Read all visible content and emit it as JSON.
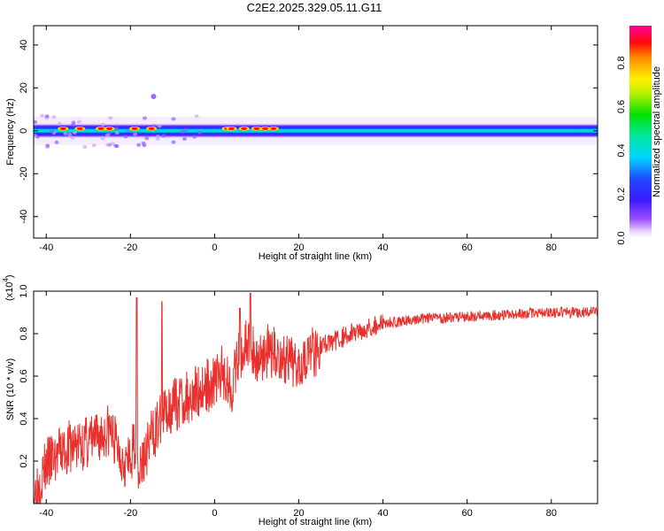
{
  "figure_title": "C2E2.2025.329.05.11.G11",
  "chart_data": [
    {
      "type": "heatmap",
      "title": "C2E2.2025.329.05.11.G11",
      "xlabel": "Height of straight line (km)",
      "ylabel": "Frequency (Hz)",
      "xlim": [
        -43,
        91
      ],
      "ylim": [
        -50,
        49
      ],
      "x_ticks": [
        -40,
        -20,
        0,
        20,
        40,
        60,
        80
      ],
      "y_ticks": [
        -40,
        -20,
        0,
        20,
        40
      ],
      "x_tick_labels": [
        "-40",
        "-20",
        "0",
        "20",
        "40",
        "60",
        "80"
      ],
      "y_tick_labels": [
        "-40",
        "-20",
        "0",
        "20",
        "40"
      ],
      "colorbar": {
        "label": "Normalized spectral amplitude",
        "range": [
          0,
          0.97
        ],
        "ticks": [
          0.0,
          0.2,
          0.4,
          0.6,
          0.8
        ],
        "tick_labels": [
          "0.0",
          "0.2",
          "0.4",
          "0.6",
          "0.8"
        ],
        "colormap": "rainbow (white-violet-blue-cyan-green-yellow-red-magenta)"
      },
      "band": {
        "center_frequency_hz": 0,
        "half_width_hz": 3,
        "peaks_at_height_km": [
          -36,
          -32,
          -27,
          -25,
          -19,
          -15,
          3,
          4,
          7,
          10,
          12,
          14
        ]
      },
      "isolated_blob": {
        "x": -14.5,
        "y": 16
      }
    },
    {
      "type": "line",
      "xlabel": "Height of straight line (km)",
      "ylabel": "SNR (10 * v/v)",
      "y_multiplier": "(x10",
      "y_multiplier_exp": "4",
      "y_multiplier_close": ")",
      "xlim": [
        -43,
        91
      ],
      "ylim": [
        0,
        1.0
      ],
      "x_ticks": [
        -40,
        -20,
        0,
        20,
        40,
        60,
        80
      ],
      "y_ticks": [
        0.2,
        0.4,
        0.6,
        0.8,
        1.0
      ],
      "x_tick_labels": [
        "-40",
        "-20",
        "0",
        "20",
        "40",
        "60",
        "80"
      ],
      "y_tick_labels": [
        "0.2",
        "0.4",
        "0.6",
        "0.8",
        "1.0"
      ],
      "line_color": "#e8302c",
      "series": [
        {
          "x": [
            -43,
            -40,
            -36,
            -32,
            -28,
            -25,
            -22,
            -20,
            -19,
            -18,
            -17,
            -15,
            -13,
            -11,
            -8,
            -5,
            -2,
            0,
            2,
            4,
            6,
            8,
            10,
            12,
            15,
            18,
            20,
            25,
            30,
            35,
            40,
            50,
            60,
            70,
            80,
            91
          ],
          "y": [
            0.05,
            0.18,
            0.25,
            0.28,
            0.3,
            0.35,
            0.22,
            0.18,
            0.3,
            0.15,
            0.2,
            0.32,
            0.38,
            0.45,
            0.48,
            0.52,
            0.55,
            0.58,
            0.62,
            0.55,
            0.7,
            0.75,
            0.68,
            0.72,
            0.7,
            0.65,
            0.68,
            0.74,
            0.78,
            0.82,
            0.85,
            0.87,
            0.88,
            0.89,
            0.9,
            0.9
          ]
        }
      ],
      "spikes": [
        {
          "x": -18.5,
          "y": 0.97
        },
        {
          "x": -12.5,
          "y": 0.95
        },
        {
          "x": 6,
          "y": 0.92
        },
        {
          "x": 8.5,
          "y": 0.99
        }
      ]
    }
  ]
}
